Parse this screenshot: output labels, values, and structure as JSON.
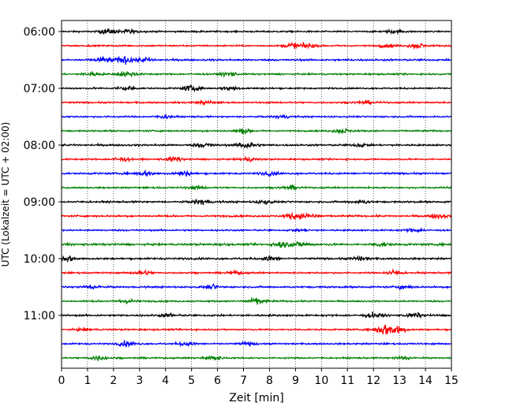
{
  "chart_data": {
    "type": "line",
    "title": "",
    "xlabel": "Zeit  [min]",
    "ylabel": "UTC (Lokalzeit = UTC + 02:00)",
    "xlim": [
      0,
      15
    ],
    "x_ticks": [
      0,
      1,
      2,
      3,
      4,
      5,
      6,
      7,
      8,
      9,
      10,
      11,
      12,
      13,
      14,
      15
    ],
    "x_grid": "dotted vertical lines at each minute",
    "y_ticks": [
      {
        "label": "06:00",
        "trace": 0
      },
      {
        "label": "07:00",
        "trace": 4
      },
      {
        "label": "08:00",
        "trace": 8
      },
      {
        "label": "09:00",
        "trace": 12
      },
      {
        "label": "10:00",
        "trace": 16
      },
      {
        "label": "11:00",
        "trace": 20
      }
    ],
    "color_cycle": [
      "#000000",
      "#ff0000",
      "#0000ff",
      "#008000"
    ],
    "series": [
      {
        "start": "06:00",
        "amplitude": 0.35,
        "events": [
          {
            "t": 1.8,
            "a": 1.2
          },
          {
            "t": 2.6,
            "a": 0.8
          },
          {
            "t": 12.8,
            "a": 0.7
          }
        ]
      },
      {
        "start": "06:15",
        "amplitude": 0.35,
        "events": [
          {
            "t": 8.9,
            "a": 1.2
          },
          {
            "t": 9.5,
            "a": 0.9
          },
          {
            "t": 12.5,
            "a": 0.7
          },
          {
            "t": 13.7,
            "a": 1.0
          }
        ]
      },
      {
        "start": "06:30",
        "amplitude": 0.4,
        "events": [
          {
            "t": 1.6,
            "a": 1.2
          },
          {
            "t": 2.4,
            "a": 1.6
          },
          {
            "t": 3.2,
            "a": 0.9
          }
        ]
      },
      {
        "start": "06:45",
        "amplitude": 0.35,
        "events": [
          {
            "t": 1.2,
            "a": 0.9
          },
          {
            "t": 2.5,
            "a": 1.4
          },
          {
            "t": 6.4,
            "a": 1.1
          }
        ]
      },
      {
        "start": "07:00",
        "amplitude": 0.35,
        "events": [
          {
            "t": 2.5,
            "a": 1.1
          },
          {
            "t": 5.0,
            "a": 1.1
          },
          {
            "t": 6.5,
            "a": 0.8
          }
        ]
      },
      {
        "start": "07:15",
        "amplitude": 0.35,
        "events": [
          {
            "t": 5.5,
            "a": 0.8
          },
          {
            "t": 11.7,
            "a": 0.6
          }
        ]
      },
      {
        "start": "07:30",
        "amplitude": 0.35,
        "events": [
          {
            "t": 4.0,
            "a": 0.6
          },
          {
            "t": 8.5,
            "a": 0.6
          }
        ]
      },
      {
        "start": "07:45",
        "amplitude": 0.35,
        "events": [
          {
            "t": 7.0,
            "a": 1.1
          },
          {
            "t": 10.8,
            "a": 0.9
          }
        ]
      },
      {
        "start": "08:00",
        "amplitude": 0.4,
        "events": [
          {
            "t": 5.5,
            "a": 1.0
          },
          {
            "t": 7.1,
            "a": 1.8
          },
          {
            "t": 11.5,
            "a": 0.8
          }
        ]
      },
      {
        "start": "08:15",
        "amplitude": 0.35,
        "events": [
          {
            "t": 2.3,
            "a": 0.8
          },
          {
            "t": 4.3,
            "a": 1.0
          },
          {
            "t": 7.2,
            "a": 0.8
          }
        ]
      },
      {
        "start": "08:30",
        "amplitude": 0.4,
        "events": [
          {
            "t": 3.2,
            "a": 1.0
          },
          {
            "t": 4.7,
            "a": 0.9
          },
          {
            "t": 8.0,
            "a": 0.7
          }
        ]
      },
      {
        "start": "08:45",
        "amplitude": 0.35,
        "events": [
          {
            "t": 8.8,
            "a": 0.9
          },
          {
            "t": 5.2,
            "a": 0.6
          }
        ]
      },
      {
        "start": "09:00",
        "amplitude": 0.4,
        "events": [
          {
            "t": 5.4,
            "a": 1.1
          },
          {
            "t": 7.8,
            "a": 0.8
          },
          {
            "t": 11.5,
            "a": 0.7
          }
        ]
      },
      {
        "start": "09:15",
        "amplitude": 0.4,
        "events": [
          {
            "t": 9.0,
            "a": 1.4
          },
          {
            "t": 9.6,
            "a": 1.0
          },
          {
            "t": 14.5,
            "a": 0.9
          }
        ]
      },
      {
        "start": "09:30",
        "amplitude": 0.35,
        "events": [
          {
            "t": 13.6,
            "a": 0.8
          },
          {
            "t": 9.2,
            "a": 0.6
          }
        ]
      },
      {
        "start": "09:45",
        "amplitude": 0.45,
        "events": [
          {
            "t": 8.5,
            "a": 1.4
          },
          {
            "t": 9.2,
            "a": 1.0
          },
          {
            "t": 12.3,
            "a": 0.8
          }
        ]
      },
      {
        "start": "10:00",
        "amplitude": 0.4,
        "events": [
          {
            "t": 0.2,
            "a": 1.2
          },
          {
            "t": 8.0,
            "a": 1.0
          },
          {
            "t": 11.5,
            "a": 0.9
          }
        ]
      },
      {
        "start": "10:15",
        "amplitude": 0.35,
        "events": [
          {
            "t": 3.1,
            "a": 1.0
          },
          {
            "t": 6.7,
            "a": 0.8
          },
          {
            "t": 12.8,
            "a": 1.0
          }
        ]
      },
      {
        "start": "10:30",
        "amplitude": 0.4,
        "events": [
          {
            "t": 1.2,
            "a": 0.9
          },
          {
            "t": 5.8,
            "a": 0.8
          },
          {
            "t": 13.2,
            "a": 0.7
          }
        ]
      },
      {
        "start": "10:45",
        "amplitude": 0.35,
        "events": [
          {
            "t": 7.5,
            "a": 1.5
          },
          {
            "t": 2.5,
            "a": 0.8
          }
        ]
      },
      {
        "start": "11:00",
        "amplitude": 0.4,
        "events": [
          {
            "t": 4.1,
            "a": 0.7
          },
          {
            "t": 12.0,
            "a": 1.1
          },
          {
            "t": 13.6,
            "a": 0.9
          }
        ]
      },
      {
        "start": "11:15",
        "amplitude": 0.35,
        "events": [
          {
            "t": 12.4,
            "a": 2.2
          },
          {
            "t": 12.9,
            "a": 2.0
          },
          {
            "t": 0.9,
            "a": 0.6
          }
        ]
      },
      {
        "start": "11:30",
        "amplitude": 0.35,
        "events": [
          {
            "t": 2.5,
            "a": 1.0
          },
          {
            "t": 4.8,
            "a": 0.9
          },
          {
            "t": 7.2,
            "a": 0.6
          }
        ]
      },
      {
        "start": "11:45",
        "amplitude": 0.35,
        "events": [
          {
            "t": 1.4,
            "a": 0.8
          },
          {
            "t": 5.8,
            "a": 1.0
          },
          {
            "t": 13.2,
            "a": 0.8
          }
        ]
      }
    ]
  }
}
